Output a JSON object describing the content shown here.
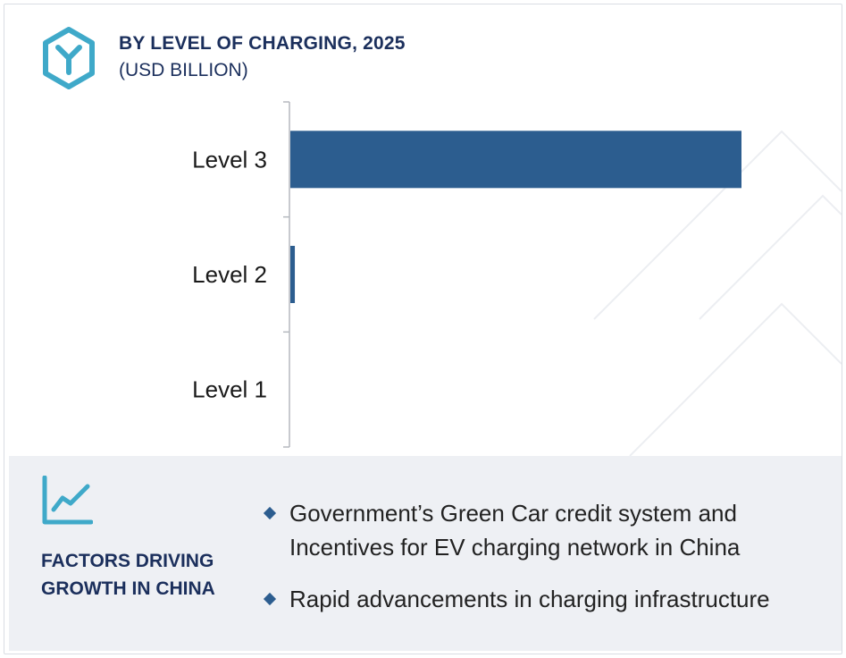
{
  "header": {
    "title": "BY LEVEL OF CHARGING, 2025",
    "subtitle": "(USD BILLION)"
  },
  "colors": {
    "bar": "#2c5d8f",
    "title": "#1b2f5c",
    "icon_accent": "#3fa9c9",
    "panel_bg": "#eef0f4"
  },
  "icons": {
    "logo": "hexagon-y-logo-icon",
    "factors": "trend-line-chart-icon",
    "bullet": "diamond-bullet-icon"
  },
  "chart_data": {
    "type": "bar",
    "orientation": "horizontal",
    "title": "BY LEVEL OF CHARGING, 2025",
    "subtitle": "(USD BILLION)",
    "categories": [
      "Level 3",
      "Level 2",
      "Level 1"
    ],
    "values": [
      100,
      1,
      0
    ],
    "xlim": [
      0,
      100
    ],
    "grid": false,
    "legend": "none",
    "value_axis_labels": "hidden"
  },
  "factors": {
    "heading": "FACTORS DRIVING GROWTH IN CHINA",
    "bullets": [
      "Government’s Green Car credit system  and Incentives for EV charging network in China",
      "Rapid advancements in charging infrastructure"
    ]
  }
}
